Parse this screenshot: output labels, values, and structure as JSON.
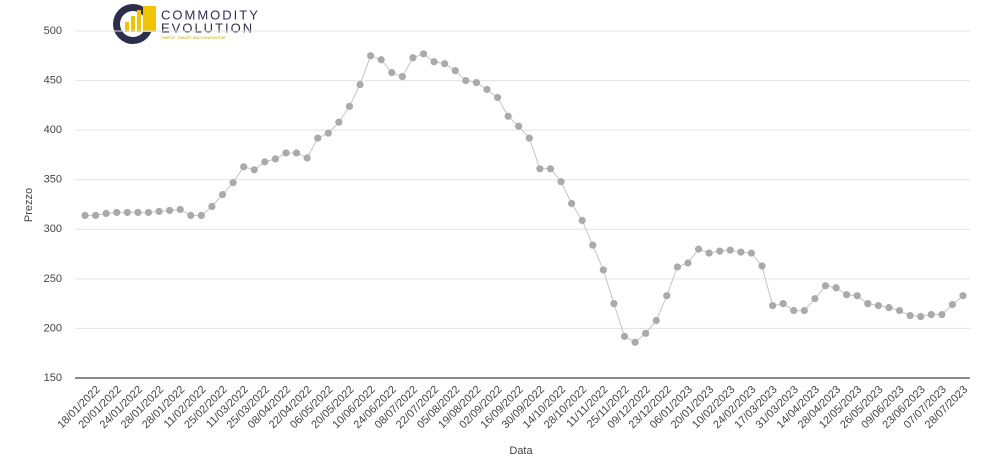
{
  "logo": {
    "name_line1": "COMMODITY",
    "name_line2": "EVOLUTION",
    "tagline": "SIMPLE, SMART AND INNOVATIVE"
  },
  "chart_data": {
    "type": "line",
    "x_label": "Data",
    "y_label": "Prezzo",
    "categories": [
      null,
      "18/01/2022",
      null,
      "20/01/2022",
      null,
      "24/01/2022",
      null,
      "28/01/2022",
      null,
      "28/01/2022",
      null,
      "11/02/2022",
      null,
      "25/02/2022",
      null,
      "11/03/2022",
      null,
      "25/03/2022",
      null,
      "08/04/2022",
      null,
      "22/04/2022",
      null,
      "06/05/2022",
      null,
      "20/05/2022",
      null,
      "10/06/2022",
      null,
      "24/06/2022",
      null,
      "08/07/2022",
      null,
      "22/07/2022",
      null,
      "05/08/2022",
      null,
      "19/08/2022",
      null,
      "02/09/2022",
      null,
      "16/09/2022",
      null,
      "30/09/2022",
      null,
      "14/10/2022",
      null,
      "28/10/2022",
      null,
      "11/11/2022",
      null,
      "25/11/2022",
      null,
      "09/12/2022",
      null,
      "23/12/2022",
      null,
      "06/01/2023",
      null,
      "20/01/2023",
      null,
      "10/02/2023",
      null,
      "24/02/2023",
      null,
      "17/03/2023",
      null,
      "31/03/2023",
      null,
      "14/04/2023",
      null,
      "28/04/2023",
      null,
      "12/05/2023",
      null,
      "26/05/2023",
      null,
      "09/06/2023",
      null,
      "23/06/2023",
      null,
      "07/07/2023",
      null,
      "28/07/2023"
    ],
    "values": [
      314,
      314,
      316,
      317,
      317,
      317,
      317,
      318,
      319,
      320,
      314,
      314,
      323,
      335,
      347,
      363,
      360,
      368,
      371,
      377,
      377,
      372,
      392,
      397,
      408,
      424,
      446,
      475,
      471,
      458,
      454,
      473,
      477,
      469,
      467,
      460,
      450,
      448,
      441,
      433,
      414,
      404,
      392,
      361,
      361,
      348,
      326,
      309,
      284,
      259,
      225,
      192,
      186,
      195,
      208,
      233,
      262,
      266,
      280,
      276,
      278,
      279,
      277,
      276,
      263,
      223,
      225,
      218,
      218,
      230,
      243,
      241,
      234,
      233,
      225,
      223,
      221,
      218,
      213,
      212,
      214,
      214,
      224,
      233
    ],
    "color": "#c4c4c4",
    "marker_color": "#aaaaaa",
    "ylim": [
      150,
      500
    ],
    "yticks": [
      150,
      200,
      250,
      300,
      350,
      400,
      450,
      500
    ],
    "grid": true
  }
}
